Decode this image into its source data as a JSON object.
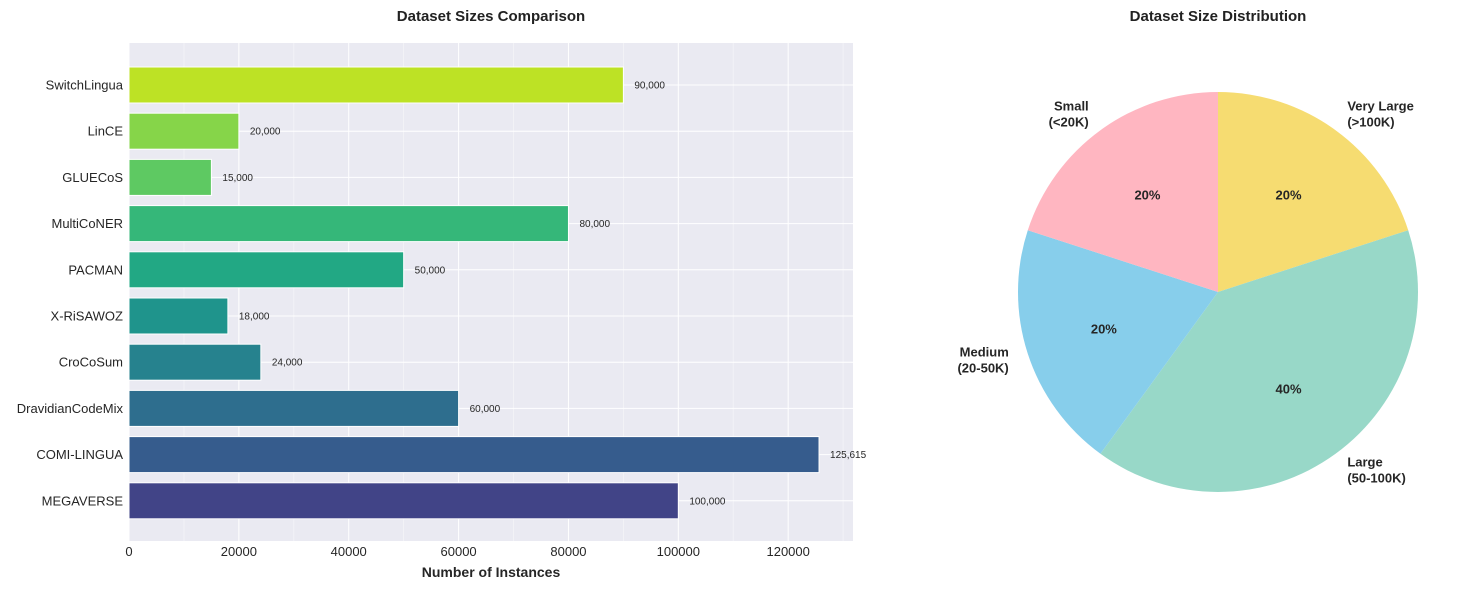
{
  "chart_data": [
    {
      "type": "bar",
      "orientation": "horizontal",
      "title": "Dataset Sizes Comparison",
      "xlabel": "Number of Instances",
      "ylabel": "",
      "xlim": [
        0,
        131800
      ],
      "xticks": [
        0,
        20000,
        40000,
        60000,
        80000,
        100000,
        120000
      ],
      "grid": true,
      "categories": [
        "SwitchLingua",
        "LinCE",
        "GLUECoS",
        "MultiCoNER",
        "PACMAN",
        "X-RiSAWOZ",
        "CroCoSum",
        "DravidianCodeMix",
        "COMI-LINGUA",
        "MEGAVERSE"
      ],
      "values": [
        90000,
        20000,
        15000,
        80000,
        50000,
        18000,
        24000,
        60000,
        125615,
        100000
      ],
      "value_labels": [
        "90,000",
        "20,000",
        "15,000",
        "80,000",
        "50,000",
        "18,000",
        "24,000",
        "60,000",
        "125,615",
        "100,000"
      ],
      "colors": [
        "#bde225",
        "#86d549",
        "#5ec962",
        "#35b779",
        "#22a884",
        "#1f948c",
        "#26828e",
        "#2e6e8e",
        "#365c8d",
        "#414487"
      ],
      "background": "#eaeaf2"
    },
    {
      "type": "pie",
      "title": "Dataset Size Distribution",
      "labels": [
        "Very Large\n(>100K)",
        "Large\n(50-100K)",
        "Medium\n(20-50K)",
        "Small\n(<20K)"
      ],
      "values": [
        20,
        40,
        20,
        20
      ],
      "pct_labels": [
        "20%",
        "40%",
        "20%",
        "20%"
      ],
      "colors": [
        "#f6dc71",
        "#98d8c8",
        "#87ceeb",
        "#ffb6c1"
      ],
      "start": "top, clockwise"
    }
  ]
}
